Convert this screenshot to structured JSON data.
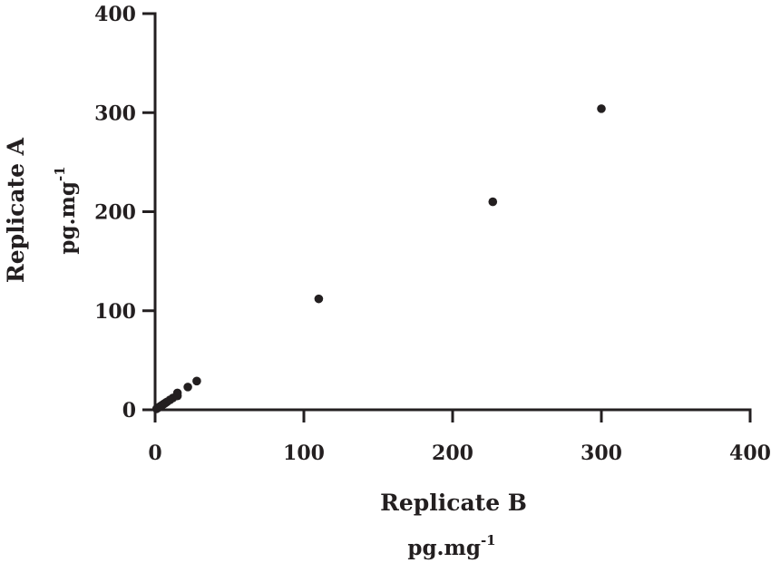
{
  "chart_data": {
    "type": "scatter",
    "xlabel": "Replicate B",
    "xunit": "pg.mg",
    "xunit_sup": "-1",
    "ylabel": "Replicate A",
    "yunit": "pg.mg",
    "yunit_sup": "-1",
    "xlim": [
      0,
      400
    ],
    "ylim": [
      0,
      400
    ],
    "x_ticks": [
      "0",
      "100",
      "200",
      "300",
      "400"
    ],
    "y_ticks": [
      "0",
      "100",
      "200",
      "300",
      "400"
    ],
    "grid": false,
    "legend": "none",
    "marker_color": "#231f20",
    "points": [
      {
        "x": 1,
        "y": 1
      },
      {
        "x": 2,
        "y": 2
      },
      {
        "x": 3,
        "y": 3
      },
      {
        "x": 4,
        "y": 4
      },
      {
        "x": 5,
        "y": 5
      },
      {
        "x": 6,
        "y": 6
      },
      {
        "x": 7,
        "y": 7
      },
      {
        "x": 8,
        "y": 8
      },
      {
        "x": 10,
        "y": 10
      },
      {
        "x": 12,
        "y": 12
      },
      {
        "x": 15,
        "y": 14
      },
      {
        "x": 15,
        "y": 17
      },
      {
        "x": 22,
        "y": 23
      },
      {
        "x": 28,
        "y": 29
      },
      {
        "x": 110,
        "y": 112
      },
      {
        "x": 227,
        "y": 210
      },
      {
        "x": 300,
        "y": 304
      }
    ]
  }
}
